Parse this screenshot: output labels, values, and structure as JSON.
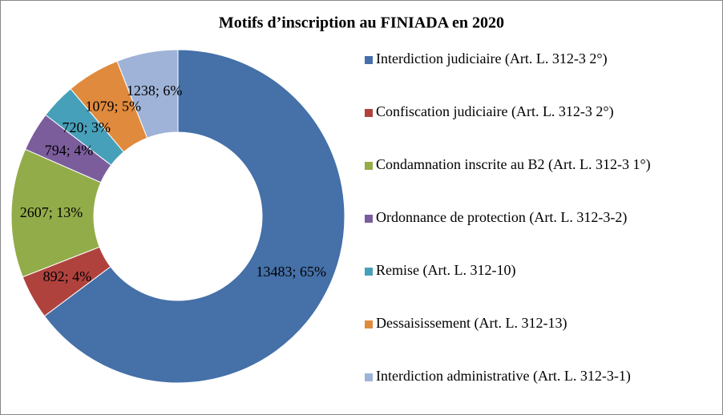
{
  "chart_data": {
    "type": "donut",
    "title": "Motifs d’inscription au FINIADA en 2020",
    "categories": [
      "Interdiction judiciaire (Art. L. 312-3 2°)",
      "Confiscation judiciaire (Art. L. 312-3 2°)",
      "Condamnation inscrite au B2 (Art. L. 312-3 1°)",
      "Ordonnance de protection (Art. L. 312-3-2)",
      "Remise  (Art. L. 312-10)",
      "Dessaisissement (Art. L. 312-13)",
      "Interdiction administrative  (Art. L. 312-3-1)"
    ],
    "values": [
      13483,
      892,
      2607,
      794,
      720,
      1079,
      1238
    ],
    "value_labels": [
      "13483; 65%",
      "892; 4%",
      "2607; 13%",
      "794; 4%",
      "720; 3%",
      "1079; 5%",
      "1238; 6%"
    ],
    "colors": [
      "#4570a8",
      "#b0423e",
      "#93ac4a",
      "#7b5d9c",
      "#47a0b9",
      "#e08a3e",
      "#9fb3d8"
    ],
    "legend": "right"
  }
}
